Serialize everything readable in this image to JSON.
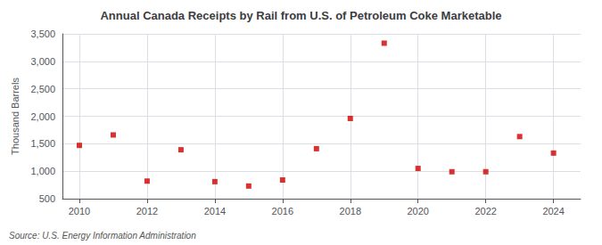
{
  "chart_data": {
    "type": "scatter",
    "title": "Annual Canada Receipts by Rail from U.S. of Petroleum Coke Marketable",
    "ylabel": "Thousand Barrels",
    "source": "Source: U.S. Energy Information Administration",
    "x": [
      2010,
      2011,
      2012,
      2013,
      2014,
      2015,
      2016,
      2017,
      2018,
      2019,
      2020,
      2021,
      2022,
      2023,
      2024
    ],
    "values": [
      1470,
      1660,
      820,
      1390,
      810,
      730,
      840,
      1410,
      1960,
      3330,
      1050,
      990,
      990,
      1630,
      1330
    ],
    "color": "#cc0000",
    "marker": "square",
    "xlim": [
      2009.5,
      2024.8
    ],
    "xticks": [
      2010,
      2012,
      2014,
      2016,
      2018,
      2020,
      2022,
      2024
    ],
    "ylim": [
      500,
      3500
    ],
    "yticks": [
      500,
      {
        "value": 1000,
        "label": "1,000"
      },
      {
        "value": 1500,
        "label": "1,500"
      },
      {
        "value": 2000,
        "label": "2,000"
      },
      {
        "value": 2500,
        "label": "2,500"
      },
      {
        "value": 3000,
        "label": "3,000"
      },
      {
        "value": 3500,
        "label": "3,500"
      }
    ],
    "grid": true
  }
}
